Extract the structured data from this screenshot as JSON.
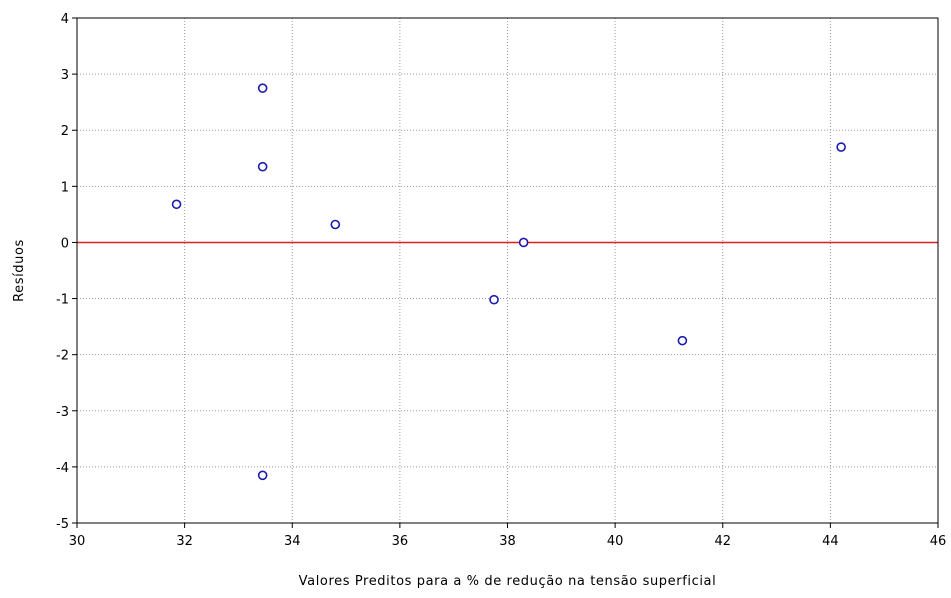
{
  "chart_data": {
    "type": "scatter",
    "xlabel": "Valores Preditos para a % de redução na tensão superficial",
    "ylabel": "Resíduos",
    "xlim": [
      30,
      46
    ],
    "ylim": [
      -5,
      4
    ],
    "x_ticks": [
      "30",
      "32",
      "34",
      "36",
      "38",
      "40",
      "42",
      "44",
      "46"
    ],
    "y_ticks": [
      "4",
      "3",
      "2",
      "1",
      "0",
      "-1",
      "-2",
      "-3",
      "-4",
      "-5"
    ],
    "grid": true,
    "reference_line": {
      "y": 0,
      "color": "#e02020"
    },
    "marker_color": "#1a1ab0",
    "points": [
      {
        "x": 31.85,
        "y": 0.68
      },
      {
        "x": 33.45,
        "y": 2.75
      },
      {
        "x": 33.45,
        "y": 1.35
      },
      {
        "x": 33.45,
        "y": -4.15
      },
      {
        "x": 34.8,
        "y": 0.32
      },
      {
        "x": 37.75,
        "y": -1.02
      },
      {
        "x": 38.3,
        "y": 0.0
      },
      {
        "x": 41.25,
        "y": -1.75
      },
      {
        "x": 44.2,
        "y": 1.7
      }
    ]
  }
}
